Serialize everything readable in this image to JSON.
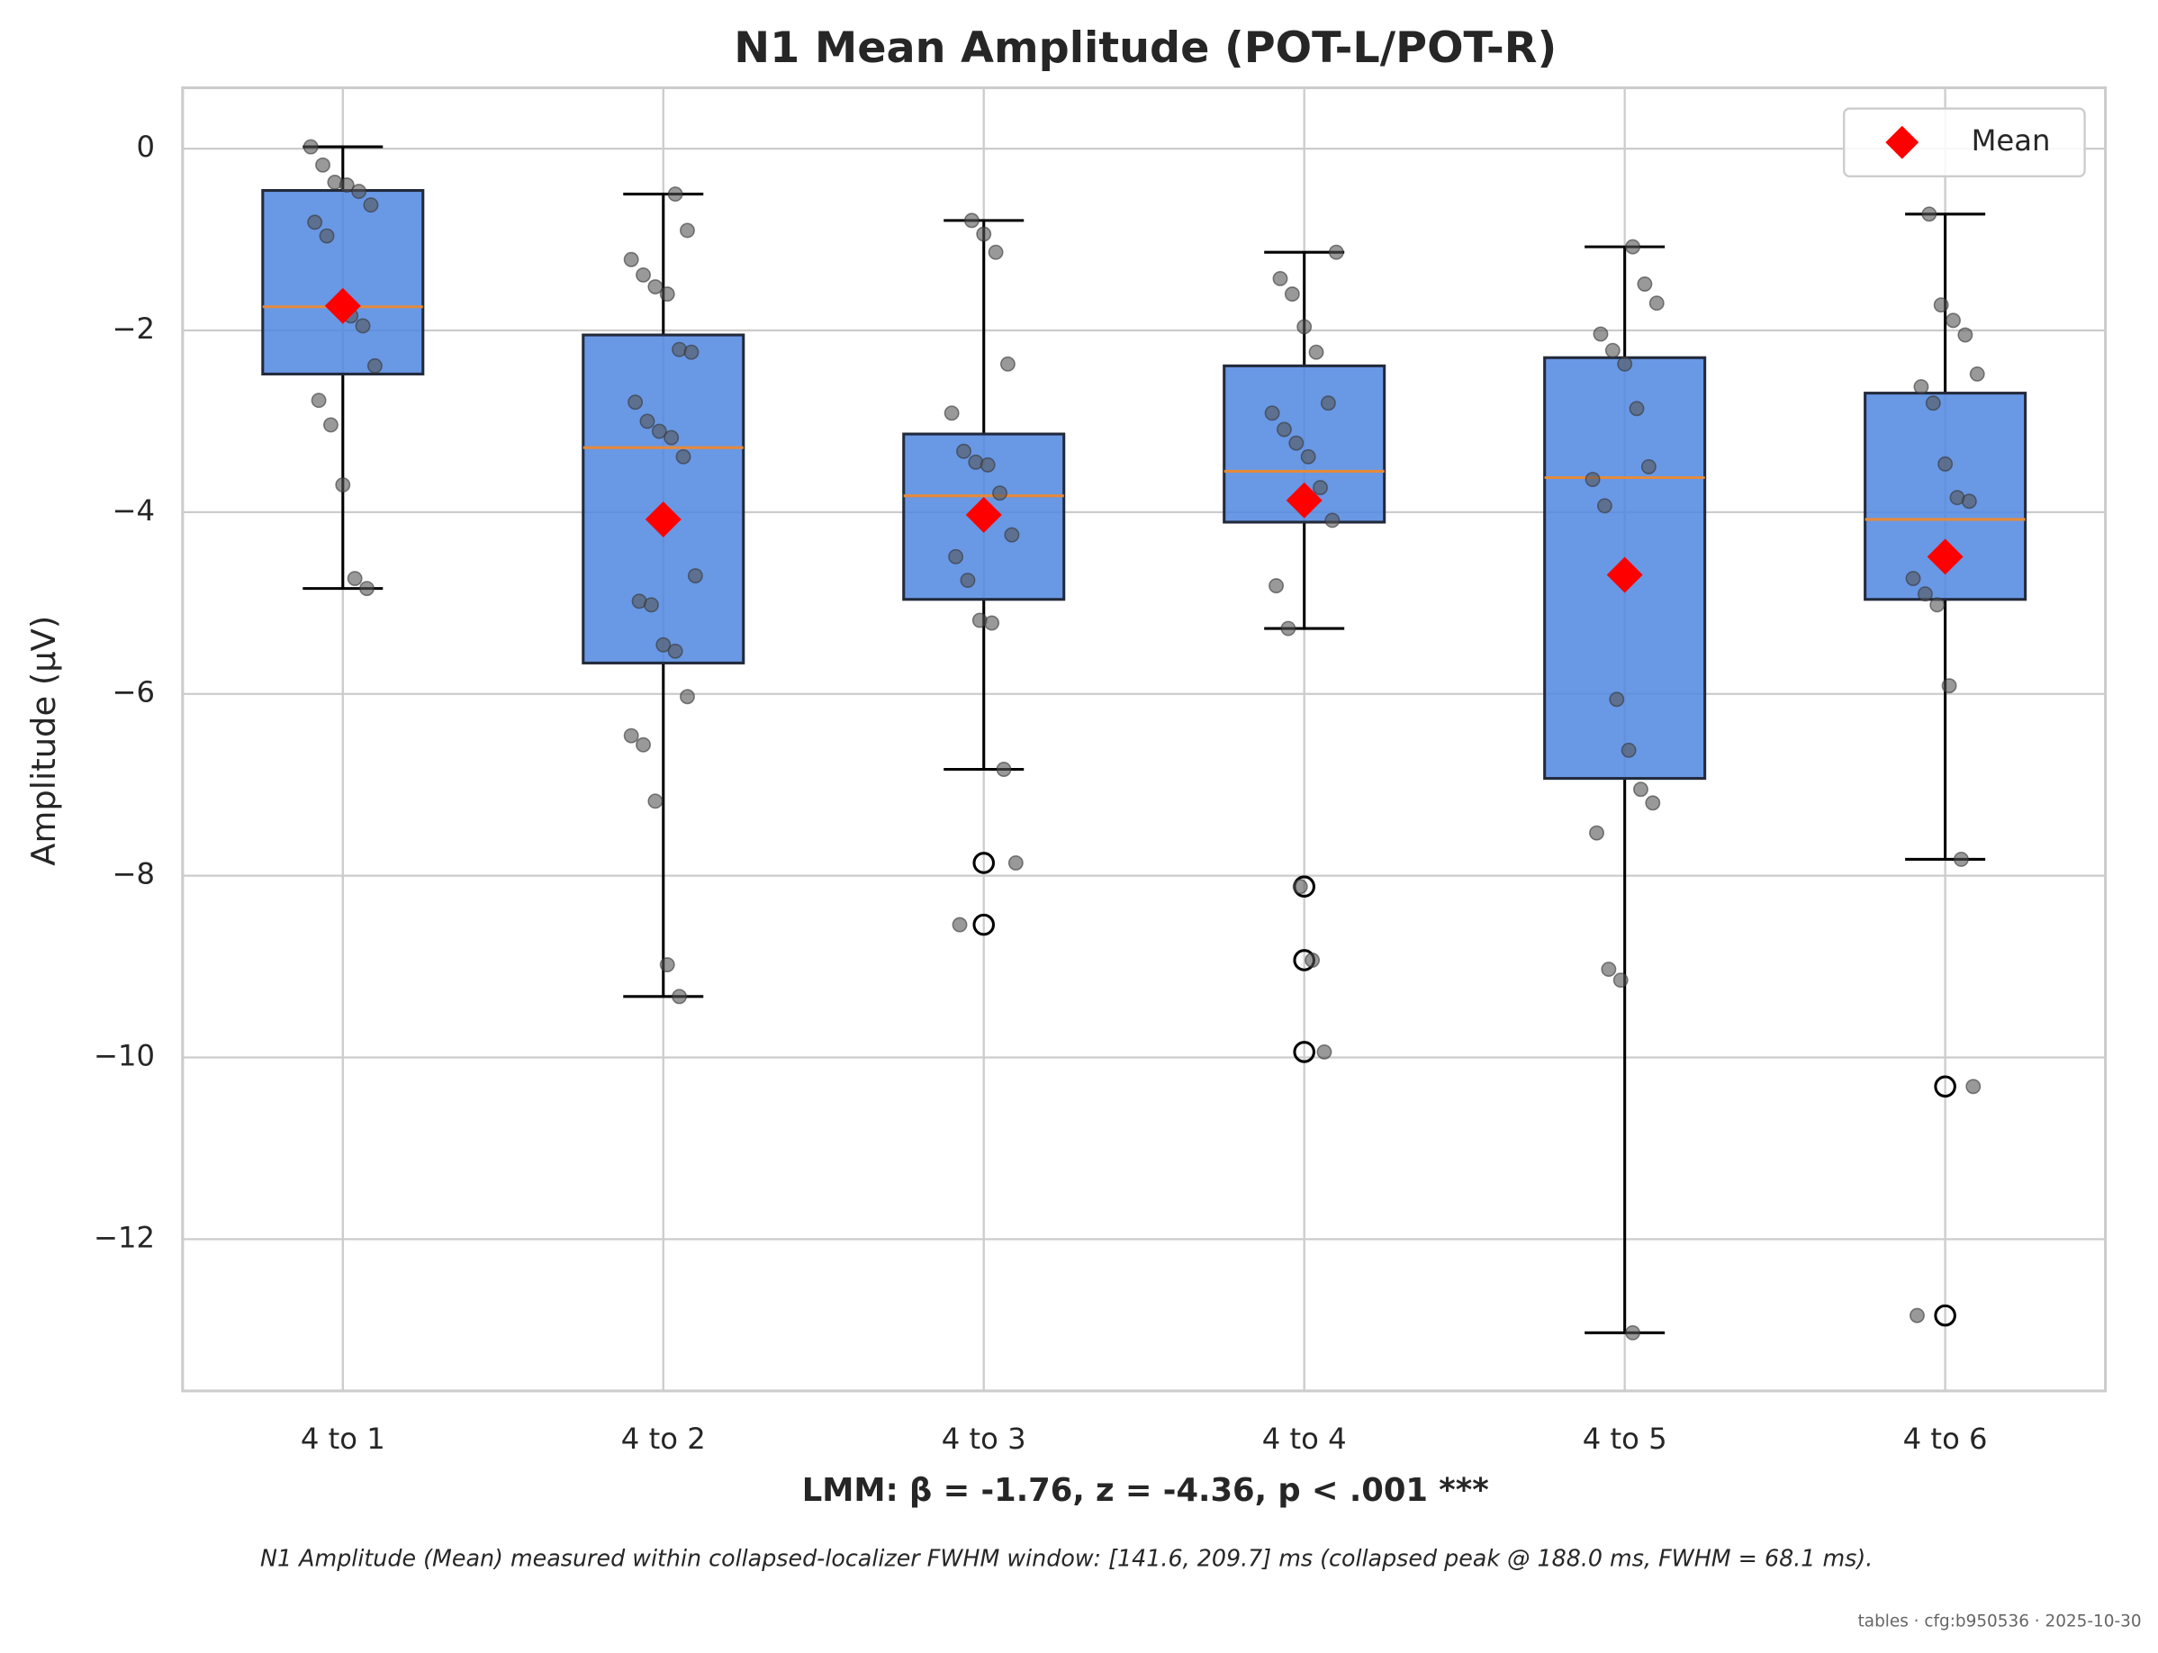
{
  "chart_data": {
    "type": "box",
    "title": "N1 Mean Amplitude (POT-L/POT-R)",
    "xlabel": "LMM: β = -1.76, z = -4.36, p < .001 ***",
    "ylabel": "Amplitude (μV)",
    "categories": [
      "4 to 1",
      "4 to 2",
      "4 to 3",
      "4 to 4",
      "4 to 5",
      "4 to 6"
    ],
    "box_color": "#4f86e0",
    "median_color": "#e58a3a",
    "point_color": "#555555",
    "stats": [
      {
        "whisker_low": -4.84,
        "q1": -2.48,
        "median": -1.74,
        "q3": -0.46,
        "whisker_high": 0.02
      },
      {
        "whisker_low": -9.33,
        "q1": -5.66,
        "median": -3.29,
        "q3": -2.05,
        "whisker_high": -0.5
      },
      {
        "whisker_low": -6.83,
        "q1": -4.96,
        "median": -3.82,
        "q3": -3.14,
        "whisker_high": -0.79
      },
      {
        "whisker_low": -5.28,
        "q1": -4.11,
        "median": -3.55,
        "q3": -2.39,
        "whisker_high": -1.14
      },
      {
        "whisker_low": -13.03,
        "q1": -6.93,
        "median": -3.62,
        "q3": -2.3,
        "whisker_high": -1.08
      },
      {
        "whisker_low": -7.82,
        "q1": -4.96,
        "median": -4.08,
        "q3": -2.69,
        "whisker_high": -0.72
      }
    ],
    "outliers": [
      [],
      [],
      [
        -7.86,
        -8.54
      ],
      [
        -8.12,
        -8.93,
        -9.94
      ],
      [],
      [
        -10.32,
        -12.84
      ]
    ],
    "points": [
      [
        0.02,
        -0.18,
        -0.37,
        -0.4,
        -0.47,
        -0.62,
        -0.81,
        -0.96,
        -1.75,
        -1.84,
        -1.95,
        -2.39,
        -2.77,
        -3.04,
        -3.7,
        -4.73,
        -4.84
      ],
      [
        -0.5,
        -0.9,
        -1.22,
        -1.39,
        -1.52,
        -1.6,
        -2.21,
        -2.24,
        -2.79,
        -3.0,
        -3.11,
        -3.18,
        -3.39,
        -4.7,
        -4.98,
        -5.02,
        -5.46,
        -5.53,
        -6.03,
        -6.46,
        -6.56,
        -7.18,
        -8.98,
        -9.33
      ],
      [
        -0.79,
        -0.94,
        -1.14,
        -2.37,
        -2.91,
        -3.33,
        -3.45,
        -3.48,
        -3.79,
        -4.25,
        -4.49,
        -4.75,
        -5.19,
        -5.22,
        -6.83,
        -7.86,
        -8.54
      ],
      [
        -1.14,
        -1.43,
        -1.6,
        -1.96,
        -2.24,
        -2.8,
        -2.91,
        -3.09,
        -3.24,
        -3.39,
        -3.73,
        -4.09,
        -4.81,
        -5.28,
        -8.12,
        -8.93,
        -9.94
      ],
      [
        -1.08,
        -1.49,
        -1.7,
        -2.04,
        -2.22,
        -2.37,
        -2.86,
        -3.5,
        -3.64,
        -3.93,
        -6.06,
        -6.62,
        -7.05,
        -7.2,
        -7.53,
        -9.03,
        -9.15,
        -13.03
      ],
      [
        -0.72,
        -1.72,
        -1.89,
        -2.05,
        -2.48,
        -2.62,
        -2.8,
        -3.47,
        -3.84,
        -3.88,
        -4.73,
        -4.9,
        -5.02,
        -5.91,
        -7.82,
        -10.32,
        -12.84
      ]
    ],
    "series": [
      {
        "name": "Mean",
        "color": "#ff0000",
        "values": [
          -1.73,
          -4.08,
          -4.03,
          -3.87,
          -4.69,
          -4.49
        ]
      }
    ],
    "legend": "upper right",
    "ylim": [
      -13.67,
      0.67
    ],
    "yticks": [
      {
        "value": -12,
        "label": "−12"
      },
      {
        "value": -10,
        "label": "−10"
      },
      {
        "value": -8,
        "label": "−8"
      },
      {
        "value": -6,
        "label": "−6"
      },
      {
        "value": -4,
        "label": "−4"
      },
      {
        "value": -2,
        "label": "−2"
      },
      0
    ],
    "grid": true
  },
  "footnote": "N1 Amplitude (Mean) measured within collapsed-localizer FWHM window: [141.6, 209.7] ms (collapsed peak @ 188.0 ms, FWHM = 68.1 ms).",
  "stamp": "tables · cfg:b950536 · 2025-10-30"
}
